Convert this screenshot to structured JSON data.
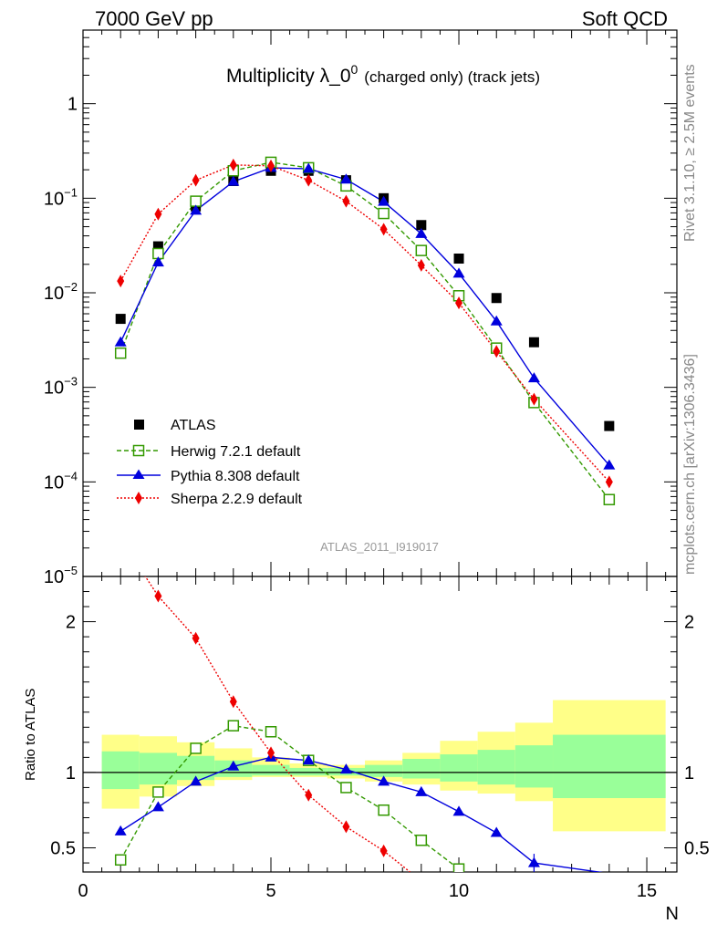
{
  "header": {
    "left": "7000 GeV pp",
    "right": "Soft QCD",
    "title_main": "Multiplicity λ_0",
    "title_sup": "0",
    "title_small": "(charged only) (track jets)"
  },
  "side_text": {
    "rivet": "Rivet 3.1.10, ≥ 2.5M events",
    "mcplots": "mcplots.cern.ch [arXiv:1306.3436]"
  },
  "analysis_label": "ATLAS_2011_I919017",
  "legend": [
    "ATLAS",
    "Herwig 7.2.1 default",
    "Pythia 8.308 default",
    "Sherpa 2.2.9 default"
  ],
  "colors": {
    "atlas": "#000000",
    "herwig": "#339900",
    "pythia": "#0000dd",
    "sherpa": "#ee0000",
    "band_inner": "#99ff99",
    "band_outer": "#ffff88"
  },
  "chart_data": {
    "type": "line",
    "xlabel": "N",
    "ylabel_ratio": "Ratio to ATLAS",
    "x_range": [
      0,
      15.8
    ],
    "y_main_log_range": [
      1e-05,
      6
    ],
    "y_ratio_range": [
      0.34,
      2.3
    ],
    "x_ticks": [
      "0",
      "5",
      "10",
      "15"
    ],
    "y_main_ticks": [
      "10^-5",
      "10^-4",
      "10^-3",
      "10^-2",
      "10^-1",
      "1"
    ],
    "y_ratio_ticks": [
      "0.5",
      "1",
      "2"
    ],
    "x": [
      1,
      2,
      3,
      4,
      5,
      6,
      7,
      8,
      9,
      10,
      11,
      12,
      14
    ],
    "series": [
      {
        "name": "ATLAS",
        "values": [
          0.0053,
          0.031,
          0.082,
          0.152,
          0.195,
          0.195,
          0.155,
          0.1,
          0.052,
          0.023,
          0.0088,
          0.003,
          0.00039
        ]
      },
      {
        "name": "Herwig 7.2.1 default",
        "values": [
          0.0023,
          0.026,
          0.093,
          0.195,
          0.24,
          0.21,
          0.135,
          0.069,
          0.028,
          0.0093,
          0.0026,
          0.00069,
          6.5e-05
        ]
      },
      {
        "name": "Pythia 8.308 default",
        "values": [
          0.003,
          0.021,
          0.074,
          0.15,
          0.21,
          0.205,
          0.158,
          0.092,
          0.042,
          0.016,
          0.005,
          0.00125,
          0.00015
        ]
      },
      {
        "name": "Sherpa 2.2.9 default",
        "values": [
          0.0133,
          0.068,
          0.155,
          0.225,
          0.22,
          0.155,
          0.093,
          0.047,
          0.0195,
          0.0078,
          0.0024,
          0.00075,
          0.0001
        ]
      }
    ],
    "ratio_series": [
      {
        "name": "Herwig 7.2.1 default",
        "x": [
          1,
          2,
          3,
          4,
          5,
          6,
          7,
          8,
          9,
          10
        ],
        "values": [
          0.42,
          0.87,
          1.16,
          1.31,
          1.27,
          1.08,
          0.9,
          0.75,
          0.55,
          0.36
        ]
      },
      {
        "name": "Pythia 8.308 default",
        "x": [
          1,
          2,
          3,
          4,
          5,
          6,
          7,
          8,
          9,
          10,
          11,
          12,
          14
        ],
        "values": [
          0.61,
          0.77,
          0.94,
          1.04,
          1.1,
          1.08,
          1.02,
          0.94,
          0.87,
          0.74,
          0.6,
          0.4,
          0.33
        ]
      },
      {
        "name": "Sherpa 2.2.9 default",
        "x": [
          1,
          2,
          3,
          4,
          5,
          6,
          7,
          8,
          8.7
        ],
        "values": [
          2.55,
          2.17,
          1.89,
          1.47,
          1.13,
          0.85,
          0.64,
          0.48,
          0.34
        ]
      }
    ],
    "uncertainty_bands": [
      {
        "x0": 0.5,
        "x1": 1.5,
        "inner": [
          0.89,
          1.14
        ],
        "outer": [
          0.76,
          1.25
        ]
      },
      {
        "x0": 1.5,
        "x1": 2.5,
        "inner": [
          0.92,
          1.13
        ],
        "outer": [
          0.84,
          1.24
        ]
      },
      {
        "x0": 2.5,
        "x1": 3.5,
        "inner": [
          0.95,
          1.11
        ],
        "outer": [
          0.91,
          1.2
        ]
      },
      {
        "x0": 3.5,
        "x1": 4.5,
        "inner": [
          0.97,
          1.08
        ],
        "outer": [
          0.95,
          1.16
        ]
      },
      {
        "x0": 4.5,
        "x1": 5.5,
        "inner": [
          0.98,
          1.05
        ],
        "outer": [
          0.97,
          1.1
        ]
      },
      {
        "x0": 5.5,
        "x1": 6.5,
        "inner": [
          0.98,
          1.03
        ],
        "outer": [
          0.97,
          1.06
        ]
      },
      {
        "x0": 6.5,
        "x1": 7.5,
        "inner": [
          0.98,
          1.03
        ],
        "outer": [
          0.96,
          1.05
        ]
      },
      {
        "x0": 7.5,
        "x1": 8.5,
        "inner": [
          0.97,
          1.05
        ],
        "outer": [
          0.94,
          1.08
        ]
      },
      {
        "x0": 8.5,
        "x1": 9.5,
        "inner": [
          0.96,
          1.09
        ],
        "outer": [
          0.92,
          1.13
        ]
      },
      {
        "x0": 9.5,
        "x1": 10.5,
        "inner": [
          0.94,
          1.12
        ],
        "outer": [
          0.88,
          1.21
        ]
      },
      {
        "x0": 10.5,
        "x1": 11.5,
        "inner": [
          0.92,
          1.15
        ],
        "outer": [
          0.86,
          1.27
        ]
      },
      {
        "x0": 11.5,
        "x1": 12.5,
        "inner": [
          0.9,
          1.18
        ],
        "outer": [
          0.81,
          1.33
        ]
      },
      {
        "x0": 12.5,
        "x1": 15.5,
        "inner": [
          0.83,
          1.25
        ],
        "outer": [
          0.61,
          1.48
        ]
      }
    ]
  }
}
